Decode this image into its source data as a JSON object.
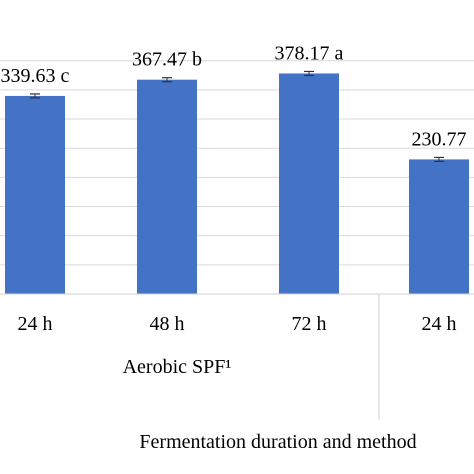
{
  "chart_data": {
    "type": "bar",
    "categories": [
      "24 h",
      "48 h",
      "72 h",
      "24 h"
    ],
    "values": [
      339.63,
      367.47,
      378.17,
      230.77
    ],
    "data_labels": [
      "339.63 c",
      "367.47 b",
      "378.17 a",
      "230.77"
    ],
    "group_label": "Aerobic SPF¹",
    "xlabel": "Fermentation duration and method",
    "ylabel": "",
    "ylim": [
      0,
      400
    ],
    "grid": true,
    "error_bars": true,
    "bar_color": "#4472c4"
  }
}
